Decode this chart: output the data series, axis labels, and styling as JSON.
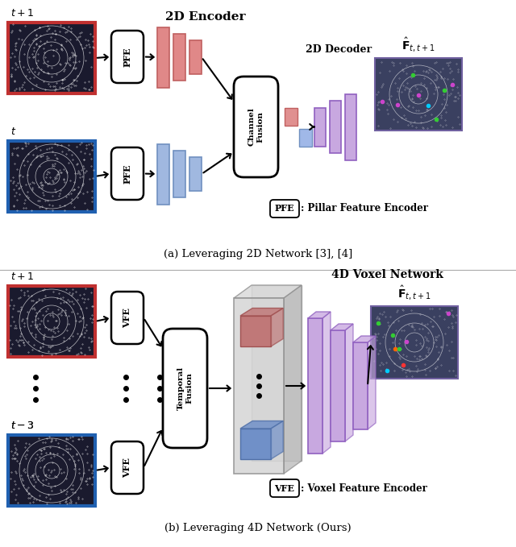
{
  "fig_width": 6.4,
  "fig_height": 6.79,
  "bg_color": "#ffffff",
  "panel_a_caption": "(a) Leveraging 2D Network [3], [4]",
  "panel_b_caption": "(b) Leveraging 4D Network (Ours)",
  "panel_a_title": "2D Encoder",
  "panel_b_4d_label": "4D Voxel Network",
  "panel_a_decoder_label": "2D Decoder",
  "pfe_label": "PFE",
  "vfe_label": "VFE",
  "channel_fusion_label": "Channel\nFusion",
  "temporal_fusion_label": "Temporal\nFusion",
  "f_hat_label": "$\\hat{\\mathbf{F}}_{t,t+1}$",
  "pfe_legend_key": "PFE",
  "pfe_legend_text": ": Pillar Feature Encoder",
  "vfe_legend_key": "VFE",
  "vfe_legend_text": ": Voxel Feature Encoder",
  "t_plus1_label": "$t+1$",
  "t_label": "$t$",
  "t_minus3_label": "$t-3$",
  "red_border": "#c03030",
  "blue_border": "#2060b0",
  "red_bar_face": "#e08888",
  "red_bar_edge": "#c06060",
  "blue_bar_face": "#a0b8e0",
  "blue_bar_edge": "#7090c0",
  "purple_bar_face": "#c8a8e0",
  "purple_bar_edge": "#9060c0",
  "small_red_face": "#e09090",
  "small_blue_face": "#a0b8e8"
}
